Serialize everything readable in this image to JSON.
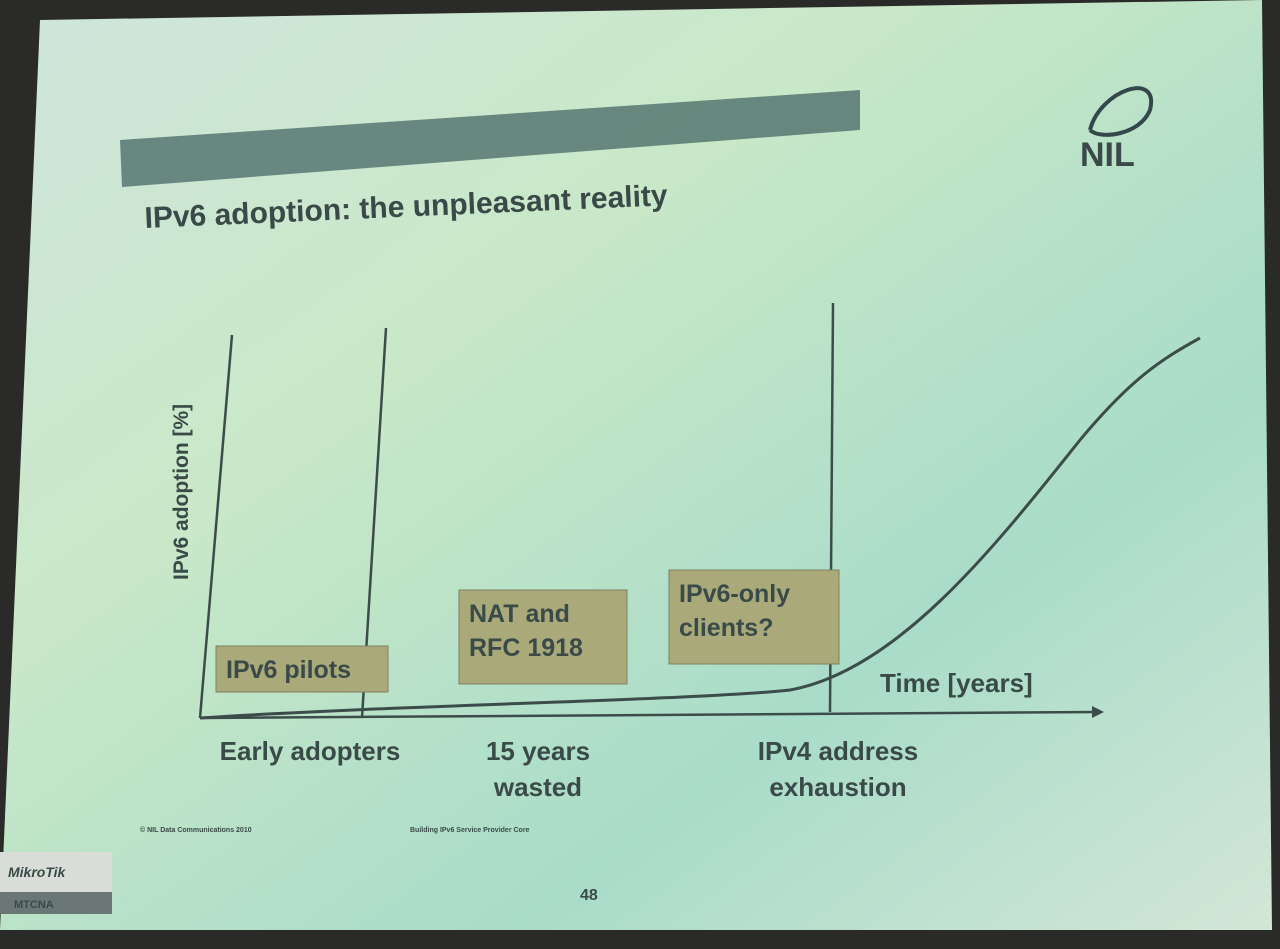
{
  "slide": {
    "logo": "NIL",
    "title": "IPv6 adoption: the unpleasant reality",
    "y_axis_label": "IPv6 adoption [%]",
    "x_axis_label": "Time [years]",
    "callouts": [
      {
        "lines": [
          "IPv6 pilots"
        ]
      },
      {
        "lines": [
          "NAT and",
          "RFC 1918"
        ]
      },
      {
        "lines": [
          "IPv6-only",
          "clients?"
        ]
      }
    ],
    "phases": [
      {
        "lines": [
          "Early adopters"
        ]
      },
      {
        "lines": [
          "15 years",
          "wasted"
        ]
      },
      {
        "lines": [
          "IPv4 address",
          "exhaustion"
        ]
      }
    ],
    "footer": {
      "copyright": "© NIL Data Communications 2010",
      "course": "Building IPv6 Service Provider Core",
      "page": "48"
    }
  },
  "badge": {
    "brand": "MikroTik",
    "course": "MTCNA"
  }
}
